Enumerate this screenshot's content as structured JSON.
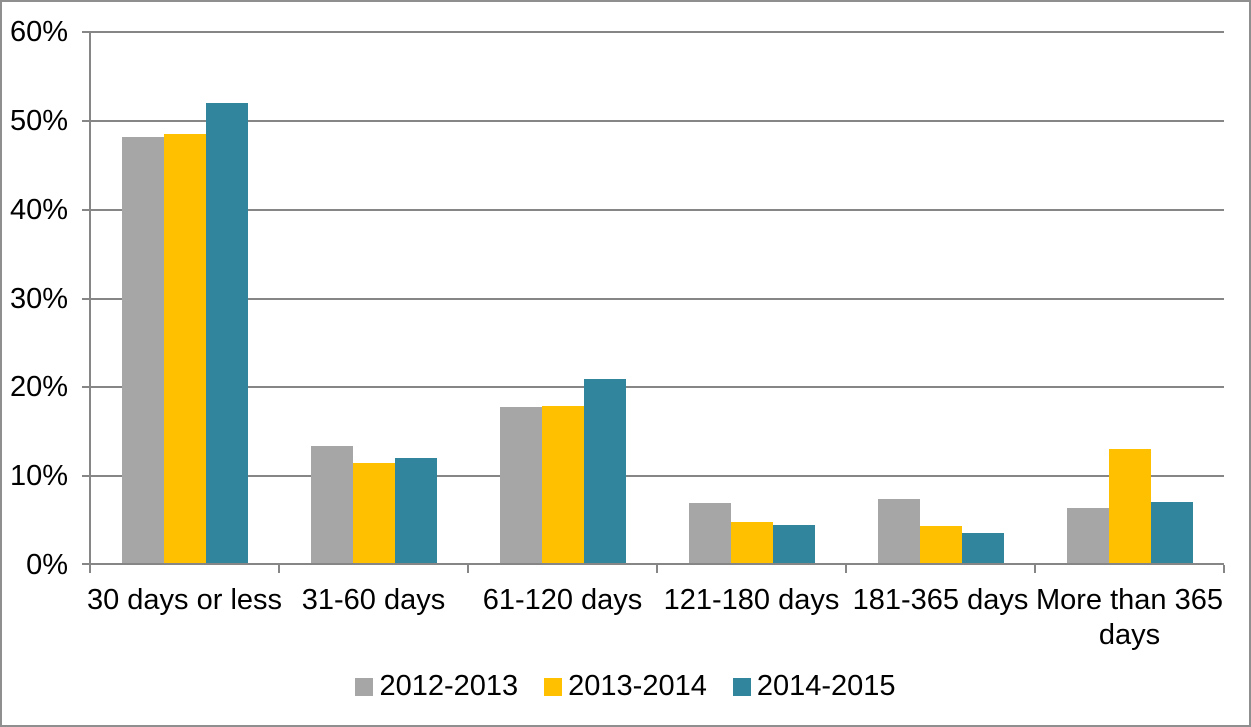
{
  "chart_data": {
    "type": "bar",
    "title": "",
    "categories": [
      "30 days or less",
      "31-60 days",
      "61-120 days",
      "121-180 days",
      "181-365 days",
      "More than 365 days"
    ],
    "series": [
      {
        "name": "2012-2013",
        "color": "#A6A6A6",
        "values": [
          48.2,
          13.4,
          17.8,
          7.0,
          7.4,
          6.4
        ]
      },
      {
        "name": "2013-2014",
        "color": "#FFC000",
        "values": [
          48.5,
          11.5,
          17.9,
          4.8,
          4.4,
          13.1
        ]
      },
      {
        "name": "2014-2015",
        "color": "#31859C",
        "values": [
          52.0,
          12.0,
          20.9,
          4.5,
          3.6,
          7.1
        ]
      }
    ],
    "xlabel": "",
    "ylabel": "",
    "ylim": [
      0,
      60
    ],
    "ytick_step": 10,
    "ytick_labels": [
      "0%",
      "10%",
      "20%",
      "30%",
      "40%",
      "50%",
      "60%"
    ],
    "grid": true,
    "legend_position": "bottom"
  },
  "style": {
    "gridline_color": "#868686",
    "axis_color": "#868686",
    "frame_color": "#8F8F8F",
    "background_color": "#FFFFFF",
    "text_color": "#000000"
  }
}
